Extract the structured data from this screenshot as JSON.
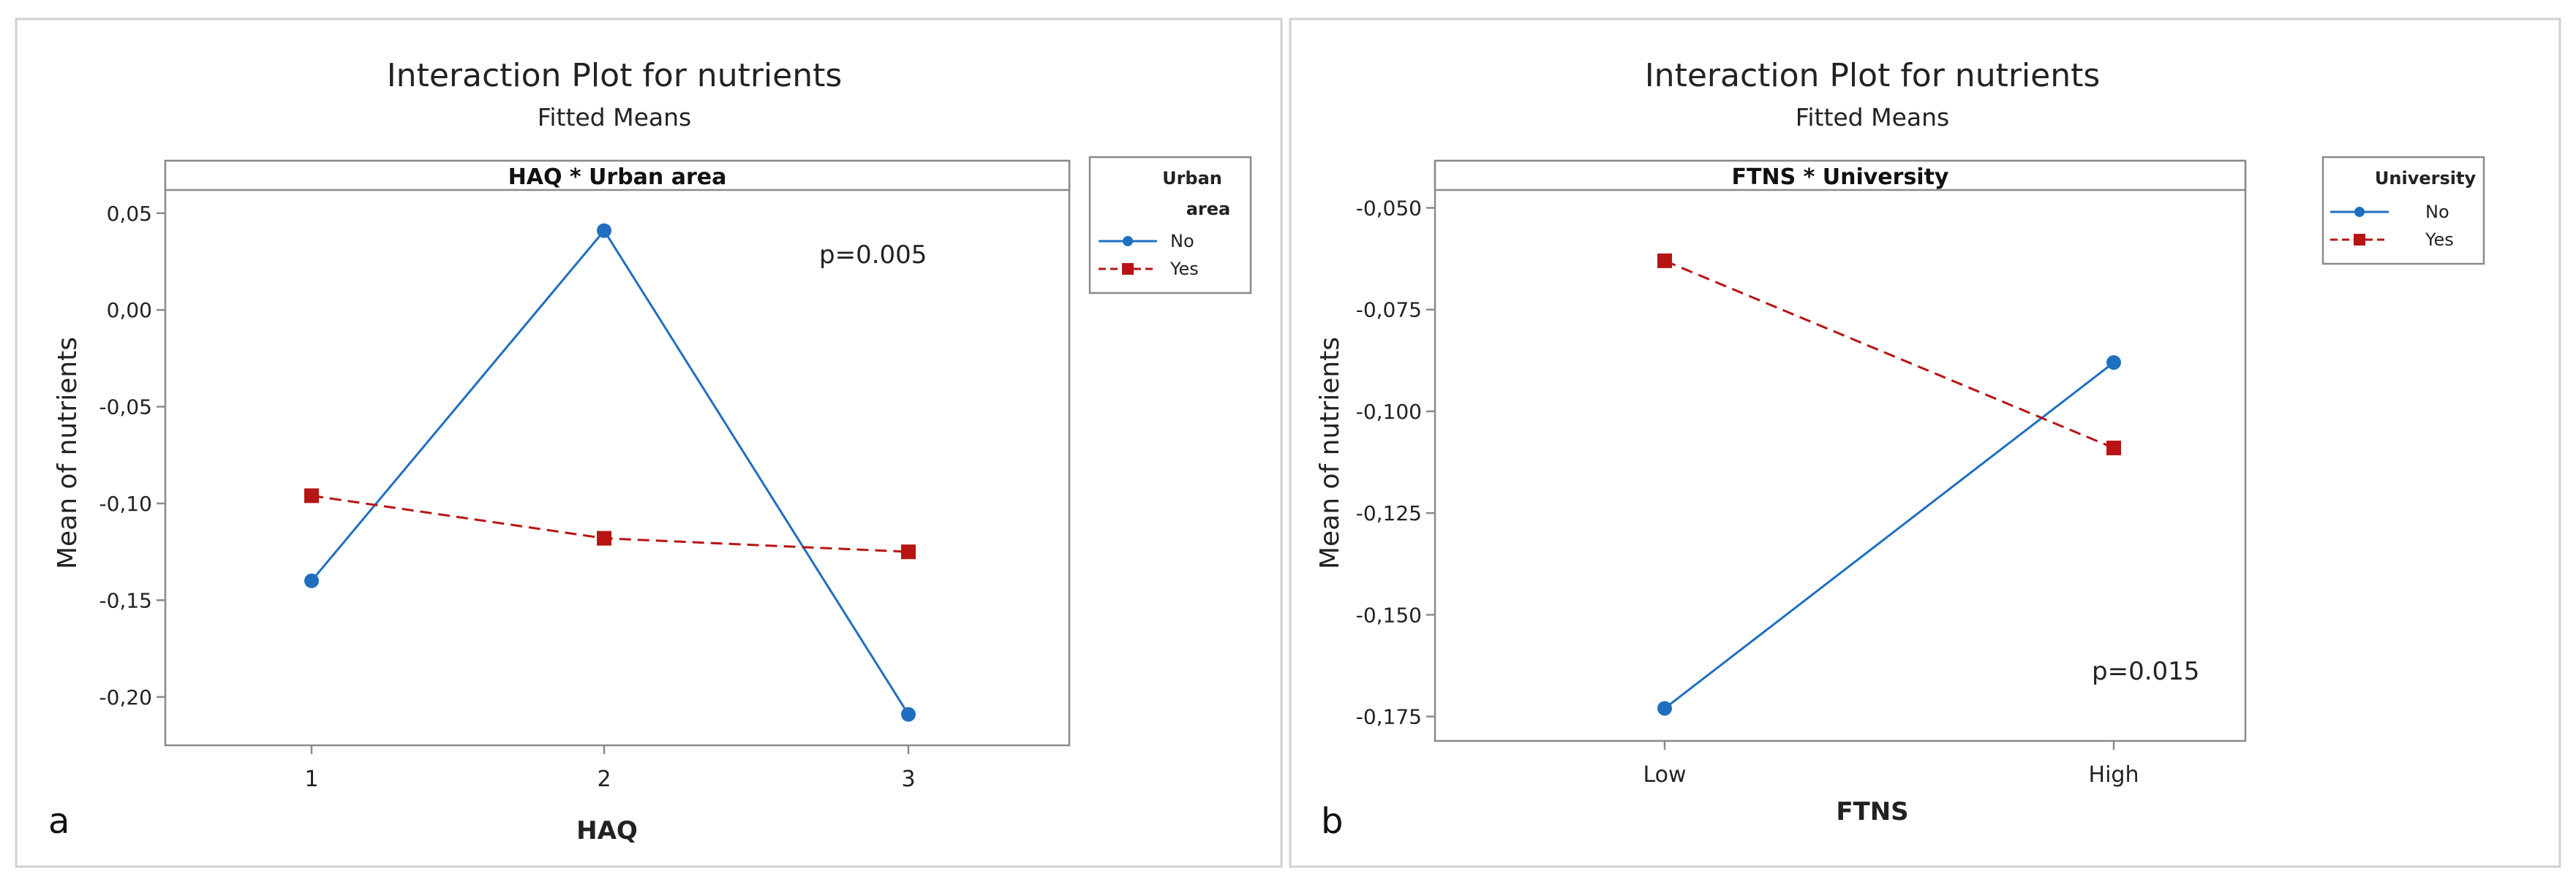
{
  "chart_data": [
    {
      "type": "line",
      "panel_letter": "a",
      "title": "Interaction Plot for nutrients",
      "subtitle": "Fitted Means",
      "header": "HAQ * Urban area",
      "xlabel": "HAQ",
      "ylabel": "Mean of nutrients",
      "categories": [
        "1",
        "2",
        "3"
      ],
      "ylim": [
        -0.225,
        0.062
      ],
      "yticks": [
        0.05,
        0.0,
        -0.05,
        -0.1,
        -0.15,
        -0.2
      ],
      "ytick_labels": [
        "0,05",
        "0,00",
        "-0,05",
        "-0,10",
        "-0,15",
        "-0,20"
      ],
      "legend_title": [
        "Urban",
        "area"
      ],
      "series": [
        {
          "name": "No",
          "values": [
            -0.14,
            0.041,
            -0.209
          ],
          "color": "#1f6fbf",
          "marker": "circle",
          "dash": "solid"
        },
        {
          "name": "Yes",
          "values": [
            -0.096,
            -0.118,
            -0.125
          ],
          "color": "#b81414",
          "marker": "square",
          "dash": "dashed"
        }
      ],
      "annotation": "p=0.005"
    },
    {
      "type": "line",
      "panel_letter": "b",
      "title": "Interaction Plot for nutrients",
      "subtitle": "Fitted Means",
      "header": "FTNS * University",
      "xlabel": "FTNS",
      "ylabel": "Mean of nutrients",
      "categories": [
        "Low",
        "High"
      ],
      "ylim": [
        -0.181,
        -0.0456
      ],
      "yticks": [
        -0.05,
        -0.075,
        -0.1,
        -0.125,
        -0.15,
        -0.175
      ],
      "ytick_labels": [
        "-0,050",
        "-0,075",
        "-0,100",
        "-0,125",
        "-0,150",
        "-0,175"
      ],
      "legend_title": [
        "University"
      ],
      "series": [
        {
          "name": "No",
          "values": [
            -0.173,
            -0.088
          ],
          "color": "#1f6fbf",
          "marker": "circle",
          "dash": "solid"
        },
        {
          "name": "Yes",
          "values": [
            -0.063,
            -0.109
          ],
          "color": "#b81414",
          "marker": "square",
          "dash": "dashed"
        }
      ],
      "annotation": "p=0.015"
    }
  ]
}
